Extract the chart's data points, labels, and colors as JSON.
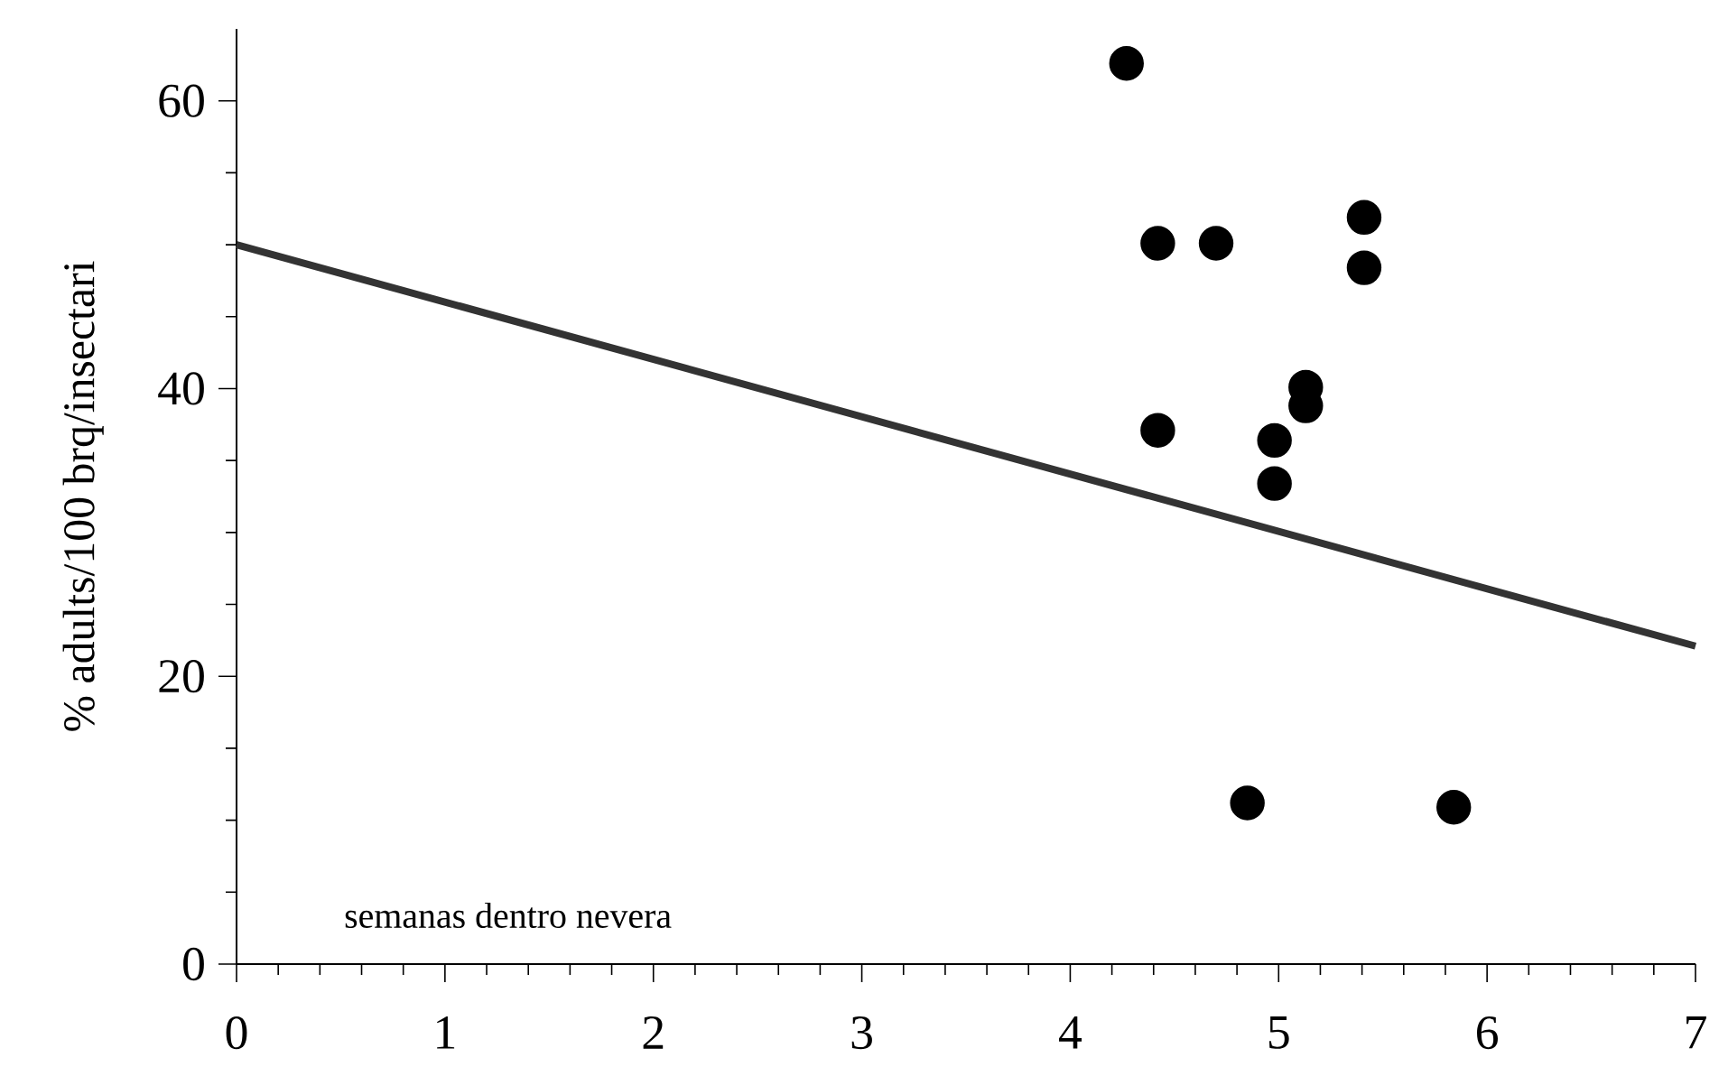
{
  "chart_data": {
    "type": "scatter",
    "xlabel": "semanas dentro nevera",
    "ylabel": "% adults/100 brq/insectari",
    "xlim": [
      0,
      7
    ],
    "ylim": [
      0,
      65
    ],
    "xticks": [
      0,
      1,
      2,
      3,
      4,
      5,
      6,
      7
    ],
    "yticks": [
      0,
      20,
      40,
      60
    ],
    "grid": false,
    "series": [
      {
        "marker": "circle",
        "color": "#000000",
        "x": [
          4.27,
          4.42,
          4.7,
          5.41,
          5.41,
          5.13,
          5.13,
          4.42,
          4.98,
          4.98,
          4.85,
          5.84
        ],
        "values": [
          62.6,
          50.1,
          50.1,
          51.9,
          48.4,
          40.1,
          38.8,
          37.1,
          36.4,
          33.4,
          11.2,
          10.9
        ]
      },
      {
        "type": "line",
        "marker": "none",
        "color": "#333333",
        "x": [
          0,
          7
        ],
        "values": [
          50,
          22.1
        ]
      }
    ]
  }
}
